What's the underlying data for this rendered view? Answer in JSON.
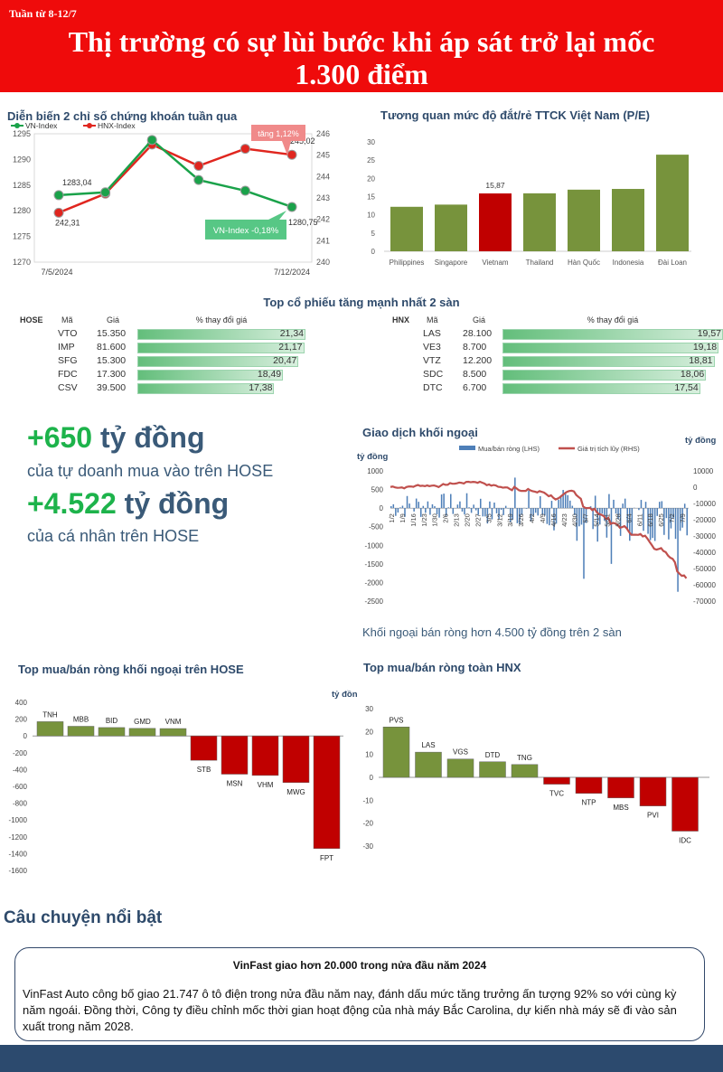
{
  "header": {
    "week": "Tuần từ 8-12/7",
    "headline_line1": "Thị trường có sự lùi bước khi áp sát trở lại mốc",
    "headline_line2": "1.300 điểm"
  },
  "index_chart": {
    "title": "Diễn biến 2 chỉ số chứng khoán tuần qua",
    "legend_vn": "VN-Index",
    "legend_hnx": "HNX-Index",
    "callout_hnx": "tăng 1,12%",
    "callout_vn": "VN-Index -0,18%",
    "label_vn_start": "1283,04",
    "label_vn_end": "1280,75",
    "label_hnx_start": "242,31",
    "label_hnx_end": "245,02",
    "date_start": "7/5/2024",
    "date_end": "7/12/2024",
    "left_ticks": [
      "1295",
      "1290",
      "1285",
      "1280",
      "1275",
      "1270"
    ],
    "right_ticks": [
      "246",
      "245",
      "244",
      "243",
      "242",
      "241",
      "240"
    ],
    "colors": {
      "vn": "#1aa24a",
      "hnx": "#e0261f",
      "callout": "#f08a8a",
      "callout_vn": "#57c785"
    }
  },
  "pe_chart": {
    "title": "Tương quan mức độ đắt/rẻ TTCK Việt Nam (P/E)",
    "yticks": [
      "30",
      "25",
      "20",
      "15",
      "10",
      "5",
      "0"
    ],
    "highlight_label": "15,87"
  },
  "top_gainers": {
    "title": "Top cổ phiếu tăng mạnh nhất 2 sàn",
    "hose": {
      "exchange": "HOSE",
      "col_code": "Mã",
      "col_price": "Giá",
      "col_pct": "% thay đổi giá",
      "rows": [
        {
          "code": "VTO",
          "price": "15.350",
          "pct": "21,34",
          "v": 21.34
        },
        {
          "code": "IMP",
          "price": "81.600",
          "pct": "21,17",
          "v": 21.17
        },
        {
          "code": "SFG",
          "price": "15.300",
          "pct": "20,47",
          "v": 20.47
        },
        {
          "code": "FDC",
          "price": "17.300",
          "pct": "18,49",
          "v": 18.49
        },
        {
          "code": "CSV",
          "price": "39.500",
          "pct": "17,38",
          "v": 17.38
        }
      ]
    },
    "hnx": {
      "exchange": "HNX",
      "col_code": "Mã",
      "col_price": "Giá",
      "col_pct": "% thay đổi giá",
      "rows": [
        {
          "code": "LAS",
          "price": "28.100",
          "pct": "19,57",
          "v": 19.57
        },
        {
          "code": "VE3",
          "price": "8.700",
          "pct": "19,18",
          "v": 19.18
        },
        {
          "code": "VTZ",
          "price": "12.200",
          "pct": "18,81",
          "v": 18.81
        },
        {
          "code": "SDC",
          "price": "8.500",
          "pct": "18,06",
          "v": 18.06
        },
        {
          "code": "DTC",
          "price": "6.700",
          "pct": "17,54",
          "v": 17.54
        }
      ]
    }
  },
  "stats": {
    "prop_num": "+650",
    "prop_unit": "tỷ đồng",
    "prop_desc": "của tự doanh mua vào trên HOSE",
    "retail_num": "+4.522",
    "retail_unit": "tỷ đồng",
    "retail_desc": "của cá nhân trên HOSE"
  },
  "foreign_chart": {
    "title": "Giao dịch khối ngoại",
    "unit_left": "tỷ đồng",
    "unit_right": "tỷ đồng",
    "legend_bar": "Mua/bán ròng (LHS)",
    "legend_line": "Giá trị tích lũy (RHS)",
    "left_ticks": [
      "1000",
      "500",
      "0",
      "-500",
      "-1000",
      "-1500",
      "-2000",
      "-2500"
    ],
    "right_ticks": [
      "10000",
      "0",
      "-10000",
      "-20000",
      "-30000",
      "-40000",
      "-50000",
      "-60000",
      "-70000"
    ],
    "date_labels": [
      "1/2",
      "1/9",
      "1/16",
      "1/23",
      "1/30",
      "2/6",
      "2/13",
      "2/20",
      "2/27",
      "3/5",
      "3/12",
      "3/19",
      "3/26",
      "4/2",
      "4/9",
      "4/16",
      "4/23",
      "4/30",
      "5/7",
      "5/14",
      "5/21",
      "5/28",
      "6/4",
      "6/11",
      "6/18",
      "6/25",
      "7/2",
      "7/9"
    ],
    "caption": "Khối ngoại bán ròng hơn 4.500 tỷ đồng trên 2 sàn",
    "colors": {
      "bar": "#4e7fb8",
      "line": "#c0504d"
    }
  },
  "hose_foreign": {
    "title": "Top mua/bán ròng khối ngoại trên HOSE",
    "unit": "tỷ đồng",
    "yticks": [
      "400",
      "200",
      "0",
      "-200",
      "-400",
      "-600",
      "-800",
      "-1000",
      "-1200",
      "-1400",
      "-1600"
    ]
  },
  "hnx_foreign": {
    "title": "Top mua/bán ròng toàn HNX",
    "yticks": [
      "30",
      "20",
      "10",
      "0",
      "-10",
      "-20",
      "-30"
    ]
  },
  "chart_data": [
    {
      "type": "line",
      "title": "Diễn biến 2 chỉ số chứng khoán tuần qua",
      "x": [
        "7/5/2024",
        "7/8/2024",
        "7/9/2024",
        "7/10/2024",
        "7/11/2024",
        "7/12/2024"
      ],
      "series": [
        {
          "name": "VN-Index",
          "axis": "left",
          "values": [
            1283.04,
            1283.6,
            1293.8,
            1286.0,
            1283.9,
            1280.75
          ]
        },
        {
          "name": "HNX-Index",
          "axis": "right",
          "values": [
            242.31,
            243.2,
            245.5,
            244.5,
            245.3,
            245.02
          ]
        }
      ],
      "ylim_left": [
        1270,
        1295
      ],
      "ylim_right": [
        240,
        246
      ]
    },
    {
      "type": "bar",
      "title": "Tương quan mức độ đắt/rẻ TTCK Việt Nam (P/E)",
      "categories": [
        "Philippines",
        "Singapore",
        "Vietnam",
        "Thailand",
        "Hàn Quốc",
        "Indonesia",
        "Đài Loan"
      ],
      "values": [
        12.2,
        12.8,
        15.87,
        15.9,
        16.9,
        17.1,
        26.5
      ],
      "highlight": "Vietnam",
      "ylim": [
        0,
        30
      ]
    },
    {
      "type": "bar",
      "title": "Top mua/bán ròng khối ngoại trên HOSE",
      "categories": [
        "TNH",
        "MBB",
        "BID",
        "GMD",
        "VNM",
        "STB",
        "MSN",
        "VHM",
        "MWG",
        "FPT"
      ],
      "values": [
        170,
        115,
        100,
        90,
        88,
        -290,
        -455,
        -470,
        -555,
        -1340
      ],
      "ylim": [
        -1600,
        400
      ],
      "ylabel": "tỷ đồng"
    },
    {
      "type": "bar",
      "title": "Top mua/bán ròng toàn HNX",
      "categories": [
        "PVS",
        "LAS",
        "VGS",
        "DTD",
        "TNG",
        "TVC",
        "NTP",
        "MBS",
        "PVI",
        "IDC"
      ],
      "values": [
        22,
        11,
        8,
        6.8,
        5.6,
        -3,
        -7,
        -9,
        -12.5,
        -23.5
      ],
      "ylim": [
        -30,
        30
      ]
    },
    {
      "type": "bar",
      "title": "Giao dịch khối ngoại",
      "series": [
        {
          "name": "Mua/bán ròng (LHS)",
          "axis": "left"
        },
        {
          "name": "Giá trị tích lũy (RHS)",
          "axis": "right",
          "type": "line"
        }
      ],
      "ylim_left": [
        -2500,
        1000
      ],
      "ylim_right": [
        -70000,
        10000
      ],
      "start_cum": 0,
      "end_cum": -58000
    }
  ],
  "story": {
    "section_title": "Câu chuyện nổi bật",
    "headline": "VinFast giao hơn 20.000 trong nửa đầu năm 2024",
    "body": "VinFast Auto công bố giao 21.747 ô tô điện trong nửa đầu năm nay, đánh dấu mức tăng trưởng ấn tượng 92% so với cùng kỳ năm ngoái. Đồng thời, Công ty điều chỉnh mốc thời gian hoạt động của nhà máy Bắc Carolina, dự kiến nhà máy sẽ đi vào sản xuất trong năm 2028."
  }
}
